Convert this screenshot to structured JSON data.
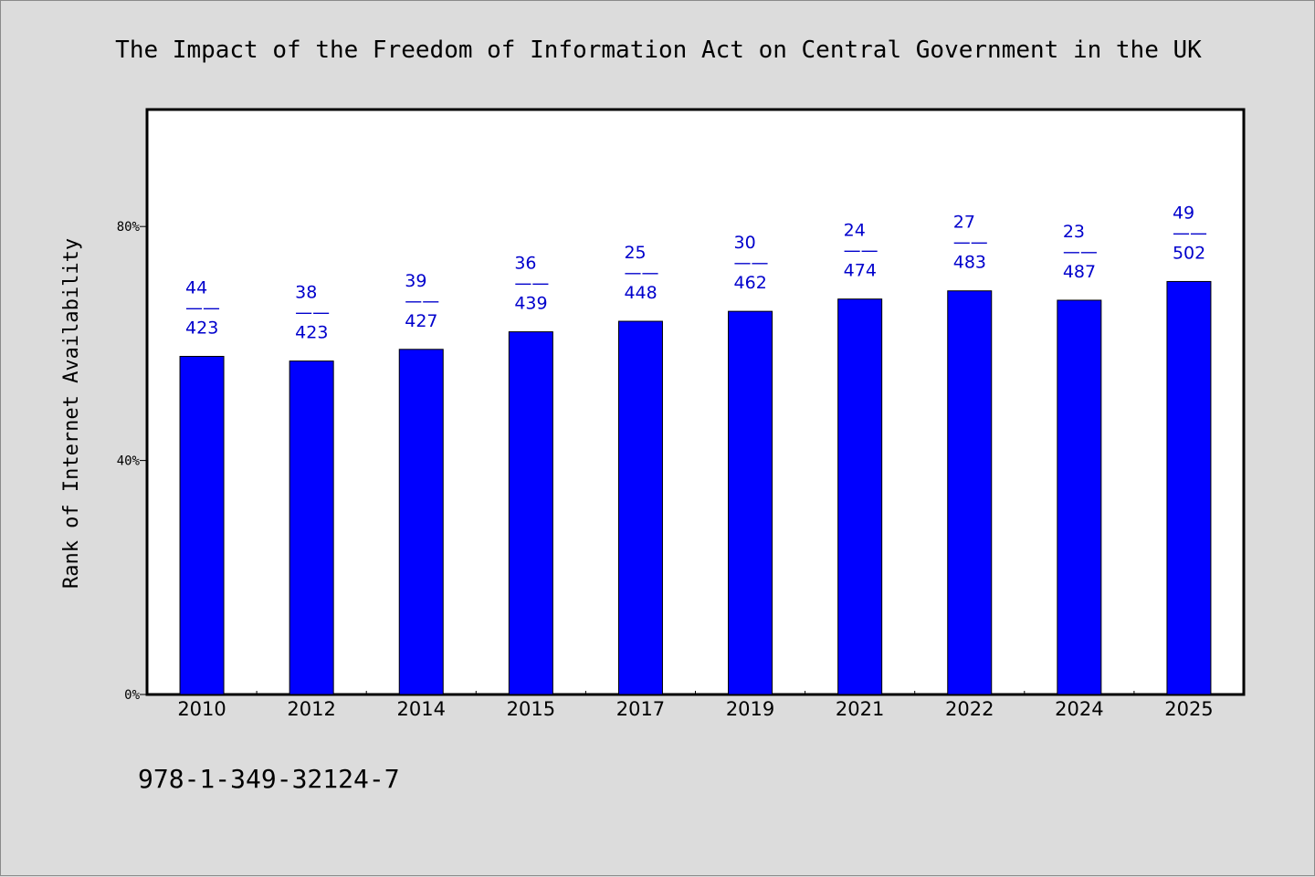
{
  "chart_data": {
    "type": "bar",
    "title": "The Impact of the Freedom of Information Act on Central Government in the UK",
    "ylabel": "Rank of Internet Availability",
    "xlabel": "",
    "ylim": [
      0,
      100
    ],
    "y_ticks": [
      0,
      40,
      80
    ],
    "y_tick_labels": [
      "0%",
      "40%",
      "80%"
    ],
    "categories": [
      "2010",
      "2012",
      "2014",
      "2015",
      "2017",
      "2019",
      "2021",
      "2022",
      "2024",
      "2025"
    ],
    "values": [
      57.8,
      57.0,
      59.0,
      62.0,
      63.8,
      65.5,
      67.6,
      69.0,
      67.4,
      70.6
    ],
    "label_numerators": [
      "44",
      "38",
      "39",
      "36",
      "25",
      "30",
      "24",
      "27",
      "23",
      "49"
    ],
    "label_separator": "——",
    "label_denominators": [
      "423",
      "423",
      "427",
      "439",
      "448",
      "462",
      "474",
      "483",
      "487",
      "502"
    ],
    "bar_color": "#0000ff",
    "label_color": "#0000cc",
    "grid": false,
    "legend": "none"
  },
  "footnote": "978-1-349-32124-7"
}
